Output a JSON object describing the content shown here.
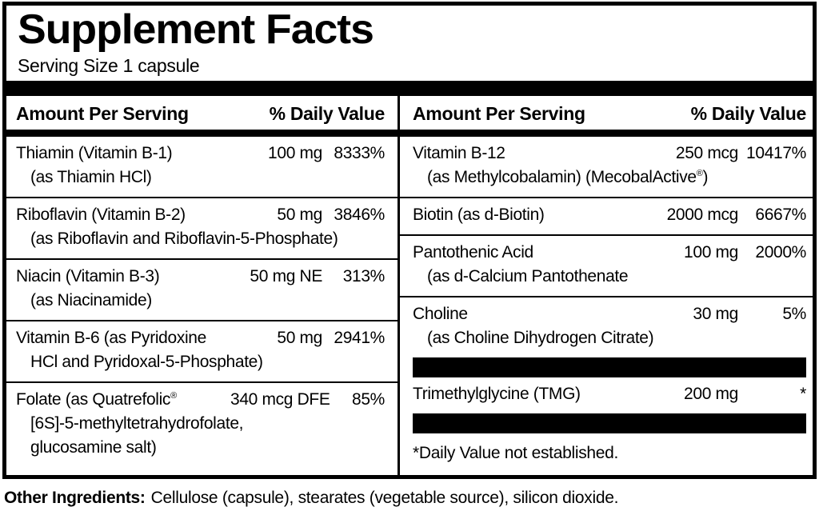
{
  "label": {
    "title": "Supplement Facts",
    "serving_size": "Serving Size 1 capsule",
    "header": {
      "amount_col": "Amount Per Serving",
      "dv_col": "% Daily Value"
    },
    "left_rows": [
      {
        "name": "Thiamin (Vitamin B-1)",
        "amount": "100 mg",
        "dv": "8333%",
        "sub1": "(as Thiamin HCl)"
      },
      {
        "name": "Riboflavin (Vitamin B-2)",
        "amount": "50 mg",
        "dv": "3846%",
        "sub1": "(as Riboflavin and Riboflavin-5-Phosphate)"
      },
      {
        "name": "Niacin (Vitamin B-3)",
        "amount": "50 mg NE",
        "dv": "313%",
        "sub1": "(as Niacinamide)"
      },
      {
        "name": "Vitamin B-6 (as Pyridoxine",
        "amount": "50 mg",
        "dv": "2941%",
        "sub1": "HCl and Pyridoxal-5-Phosphate)"
      },
      {
        "name": "Folate (as Quatrefolic",
        "reg": "®",
        "amount": "340 mcg DFE",
        "dv": "85%",
        "sub1": "[6S]-5-methyltetrahydrofolate,",
        "sub2": "glucosamine salt)"
      }
    ],
    "right_rows": [
      {
        "name": "Vitamin B-12",
        "amount": "250 mcg",
        "dv": "10417%",
        "sub1": "(as Methylcobalamin) (MecobalActive",
        "sub1_reg": "®",
        "sub1_end": ")"
      },
      {
        "name": "Biotin (as d-Biotin)",
        "amount": "2000 mcg",
        "dv": "6667%"
      },
      {
        "name": "Pantothenic Acid",
        "amount": "100 mg",
        "dv": "2000%",
        "sub1": "(as d-Calcium Pantothenate"
      },
      {
        "name": "Choline",
        "amount": "30 mg",
        "dv": "5%",
        "sub1": "(as Choline Dihydrogen Citrate)"
      },
      {
        "name": "Trimethylglycine (TMG)",
        "amount": "200 mg",
        "dv": "*"
      }
    ],
    "footnote": "*Daily Value not established.",
    "other_ingredients": {
      "label": "Other Ingredients:",
      "text": "Cellulose (capsule), stearates (vegetable source), silicon dioxide."
    },
    "colors": {
      "text": "#000000",
      "bar": "#000000",
      "background": "#ffffff"
    }
  }
}
